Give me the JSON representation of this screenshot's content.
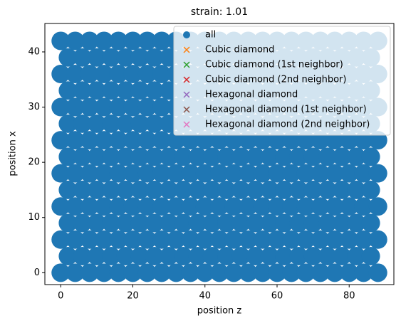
{
  "chart_data": {
    "type": "scatter",
    "title": "strain: 1.01",
    "x_label": "position z",
    "y_label": "position x",
    "xlim": [
      -4.4,
      92.4
    ],
    "ylim": [
      -2.15,
      45.15
    ],
    "xticks": [
      0,
      20,
      40,
      60,
      80
    ],
    "yticks": [
      0,
      10,
      20,
      30,
      40
    ],
    "legend": "upper right",
    "series": [
      {
        "name": "all",
        "color": "#1f77b4",
        "marker": "o",
        "x": [
          0,
          4,
          8,
          12,
          16,
          20,
          24,
          28,
          32,
          36,
          40,
          44,
          48,
          52,
          56,
          60,
          64,
          68,
          72,
          76,
          80,
          84,
          88,
          2,
          6,
          10,
          14,
          18,
          22,
          26,
          30,
          34,
          38,
          42,
          46,
          50,
          54,
          58,
          62,
          66,
          70,
          74,
          78,
          82,
          86,
          0,
          4,
          8,
          12,
          16,
          20,
          24,
          28,
          32,
          36,
          40,
          44,
          48,
          52,
          56,
          60,
          64,
          68,
          72,
          76,
          80,
          84,
          88,
          2,
          6,
          10,
          14,
          18,
          22,
          26,
          30,
          34,
          38,
          42,
          46,
          50,
          54,
          58,
          62,
          66,
          70,
          74,
          78,
          82,
          86,
          0,
          4,
          8,
          12,
          16,
          20,
          24,
          28,
          32,
          36,
          40,
          44,
          48,
          52,
          56,
          60,
          64,
          68,
          72,
          76,
          80,
          84,
          88,
          2,
          6,
          10,
          14,
          18,
          22,
          26,
          30,
          34,
          38,
          42,
          46,
          50,
          54,
          58,
          62,
          66,
          70,
          74,
          78,
          82,
          86,
          0,
          4,
          8,
          12,
          16,
          20,
          24,
          28,
          32,
          36,
          40,
          44,
          48,
          52,
          56,
          60,
          64,
          68,
          72,
          76,
          80,
          84,
          88,
          2,
          6,
          10,
          14,
          18,
          22,
          26,
          30,
          34,
          38,
          42,
          46,
          50,
          54,
          58,
          62,
          66,
          70,
          74,
          78,
          82,
          86,
          0,
          4,
          8,
          12,
          16,
          20,
          24,
          28,
          32,
          36,
          40,
          44,
          48,
          52,
          56,
          60,
          64,
          68,
          72,
          76,
          80,
          84,
          88,
          2,
          6,
          10,
          14,
          18,
          22,
          26,
          30,
          34,
          38,
          42,
          46,
          50,
          54,
          58,
          62,
          66,
          70,
          74,
          78,
          82,
          86,
          0,
          4,
          8,
          12,
          16,
          20,
          24,
          28,
          32,
          36,
          40,
          44,
          48,
          52,
          56,
          60,
          64,
          68,
          72,
          76,
          80,
          84,
          88,
          2,
          6,
          10,
          14,
          18,
          22,
          26,
          30,
          34,
          38,
          42,
          46,
          50,
          54,
          58,
          62,
          66,
          70,
          74,
          78,
          82,
          86,
          0,
          4,
          8,
          12,
          16,
          20,
          24,
          28,
          32,
          36,
          40,
          44,
          48,
          52,
          56,
          60,
          64,
          68,
          72,
          76,
          80,
          84,
          88,
          2,
          6,
          10,
          14,
          18,
          22,
          26,
          30,
          34,
          38,
          42,
          46,
          50,
          54,
          58,
          62,
          66,
          70,
          74,
          78,
          82,
          86,
          0,
          4,
          8,
          12,
          16,
          20,
          24,
          28,
          32,
          36,
          40,
          44,
          48,
          52,
          56,
          60,
          64,
          68,
          72,
          76,
          80,
          84,
          88
        ],
        "values": [
          0,
          0,
          0,
          0,
          0,
          0,
          0,
          0,
          0,
          0,
          0,
          0,
          0,
          0,
          0,
          0,
          0,
          0,
          0,
          0,
          0,
          0,
          0,
          3,
          3,
          3,
          3,
          3,
          3,
          3,
          3,
          3,
          3,
          3,
          3,
          3,
          3,
          3,
          3,
          3,
          3,
          3,
          3,
          3,
          3,
          6,
          6,
          6,
          6,
          6,
          6,
          6,
          6,
          6,
          6,
          6,
          6,
          6,
          6,
          6,
          6,
          6,
          6,
          6,
          6,
          6,
          6,
          6,
          9,
          9,
          9,
          9,
          9,
          9,
          9,
          9,
          9,
          9,
          9,
          9,
          9,
          9,
          9,
          9,
          9,
          9,
          9,
          9,
          9,
          9,
          12,
          12,
          12,
          12,
          12,
          12,
          12,
          12,
          12,
          12,
          12,
          12,
          12,
          12,
          12,
          12,
          12,
          12,
          12,
          12,
          12,
          12,
          12,
          15,
          15,
          15,
          15,
          15,
          15,
          15,
          15,
          15,
          15,
          15,
          15,
          15,
          15,
          15,
          15,
          15,
          15,
          15,
          15,
          15,
          15,
          18,
          18,
          18,
          18,
          18,
          18,
          18,
          18,
          18,
          18,
          18,
          18,
          18,
          18,
          18,
          18,
          18,
          18,
          18,
          18,
          18,
          18,
          18,
          21,
          21,
          21,
          21,
          21,
          21,
          21,
          21,
          21,
          21,
          21,
          21,
          21,
          21,
          21,
          21,
          21,
          21,
          21,
          21,
          21,
          21,
          24,
          24,
          24,
          24,
          24,
          24,
          24,
          24,
          24,
          24,
          24,
          24,
          24,
          24,
          24,
          24,
          24,
          24,
          24,
          24,
          24,
          24,
          24,
          27,
          27,
          27,
          27,
          27,
          27,
          27,
          27,
          27,
          27,
          27,
          27,
          27,
          27,
          27,
          27,
          27,
          27,
          27,
          27,
          27,
          27,
          30,
          30,
          30,
          30,
          30,
          30,
          30,
          30,
          30,
          30,
          30,
          30,
          30,
          30,
          30,
          30,
          30,
          30,
          30,
          30,
          30,
          30,
          30,
          33,
          33,
          33,
          33,
          33,
          33,
          33,
          33,
          33,
          33,
          33,
          33,
          33,
          33,
          33,
          33,
          33,
          33,
          33,
          33,
          33,
          33,
          36,
          36,
          36,
          36,
          36,
          36,
          36,
          36,
          36,
          36,
          36,
          36,
          36,
          36,
          36,
          36,
          36,
          36,
          36,
          36,
          36,
          36,
          36,
          39,
          39,
          39,
          39,
          39,
          39,
          39,
          39,
          39,
          39,
          39,
          39,
          39,
          39,
          39,
          39,
          39,
          39,
          39,
          39,
          39,
          39,
          42,
          42,
          42,
          42,
          42,
          42,
          42,
          42,
          42,
          42,
          42,
          42,
          42,
          42,
          42,
          42,
          42,
          42,
          42,
          42,
          42,
          42,
          42
        ]
      },
      {
        "name": "Cubic diamond",
        "color": "#ff7f0e",
        "marker": "x",
        "x": [],
        "values": []
      },
      {
        "name": "Cubic diamond (1st neighbor)",
        "color": "#2ca02c",
        "marker": "x",
        "x": [],
        "values": []
      },
      {
        "name": "Cubic diamond (2nd neighbor)",
        "color": "#d62728",
        "marker": "x",
        "x": [],
        "values": []
      },
      {
        "name": "Hexagonal diamond",
        "color": "#9467bd",
        "marker": "x",
        "x": [],
        "values": []
      },
      {
        "name": "Hexagonal diamond (1st neighbor)",
        "color": "#8c564b",
        "marker": "x",
        "x": [],
        "values": []
      },
      {
        "name": "Hexagonal diamond (2nd neighbor)",
        "color": "#e377c2",
        "marker": "x",
        "x": [],
        "values": []
      }
    ]
  }
}
